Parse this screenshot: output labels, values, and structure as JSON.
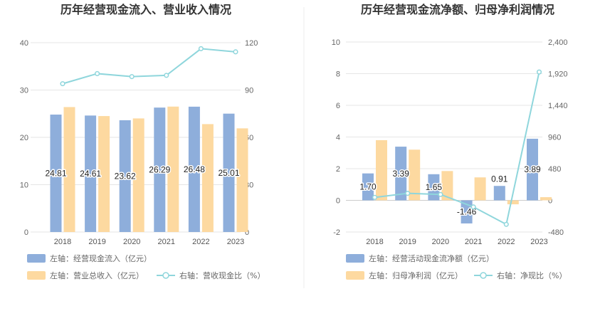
{
  "chart_data": [
    {
      "type": "bar",
      "title": "历年经营现金流入、营业收入情况",
      "categories": [
        "2018",
        "2019",
        "2020",
        "2021",
        "2022",
        "2023"
      ],
      "series": [
        {
          "name": "左轴：经营现金流入（亿元）",
          "axis": "left",
          "kind": "bar",
          "color": "#8eaedb",
          "values": [
            24.81,
            24.61,
            23.62,
            26.29,
            26.48,
            25.01
          ]
        },
        {
          "name": "左轴：营业总收入（亿元）",
          "axis": "left",
          "kind": "bar",
          "color": "#fdd9a0",
          "values": [
            26.4,
            24.5,
            24.0,
            26.5,
            22.8,
            21.9
          ]
        },
        {
          "name": "右轴：营收现金比（%）",
          "axis": "right",
          "kind": "line",
          "color": "#8fd6dc",
          "values": [
            94.0,
            100.4,
            98.5,
            99.3,
            116.2,
            114.2
          ]
        }
      ],
      "left_axis": {
        "min": 0,
        "max": 40,
        "ticks": [
          "0",
          "10",
          "20",
          "30",
          "40"
        ]
      },
      "right_axis": {
        "min": 0,
        "max": 120,
        "ticks": [
          "0",
          "30",
          "60",
          "90",
          "120"
        ]
      },
      "data_labels": [
        "24.81",
        "24.61",
        "23.62",
        "26.29",
        "26.48",
        "25.01"
      ],
      "legend_placement": "bottom",
      "grid": true
    },
    {
      "type": "bar",
      "title": "历年经营现金流净额、归母净利润情况",
      "categories": [
        "2018",
        "2019",
        "2020",
        "2021",
        "2022",
        "2023"
      ],
      "series": [
        {
          "name": "左轴：经营活动现金流净额（亿元）",
          "axis": "left",
          "kind": "bar",
          "color": "#8eaedb",
          "values": [
            1.7,
            3.39,
            1.65,
            -1.46,
            0.91,
            3.89
          ]
        },
        {
          "name": "左轴：归母净利润（亿元）",
          "axis": "left",
          "kind": "bar",
          "color": "#fdd9a0",
          "values": [
            3.8,
            3.2,
            1.85,
            1.45,
            -0.25,
            0.2
          ]
        },
        {
          "name": "右轴：净现比（%）",
          "axis": "right",
          "kind": "line",
          "color": "#8fd6dc",
          "values": [
            45,
            106,
            89,
            -100,
            -364,
            1945
          ]
        }
      ],
      "left_axis": {
        "min": -2,
        "max": 10,
        "ticks": [
          "-2",
          "0",
          "2",
          "4",
          "6",
          "8",
          "10"
        ]
      },
      "right_axis": {
        "min": -480,
        "max": 2400,
        "ticks": [
          "-480",
          "0",
          "480",
          "960",
          "1,440",
          "1,920",
          "2,400"
        ]
      },
      "data_labels": [
        "1.70",
        "3.39",
        "1.65",
        "-1.46",
        "0.91",
        "3.89"
      ],
      "legend_placement": "bottom",
      "grid": true
    }
  ]
}
